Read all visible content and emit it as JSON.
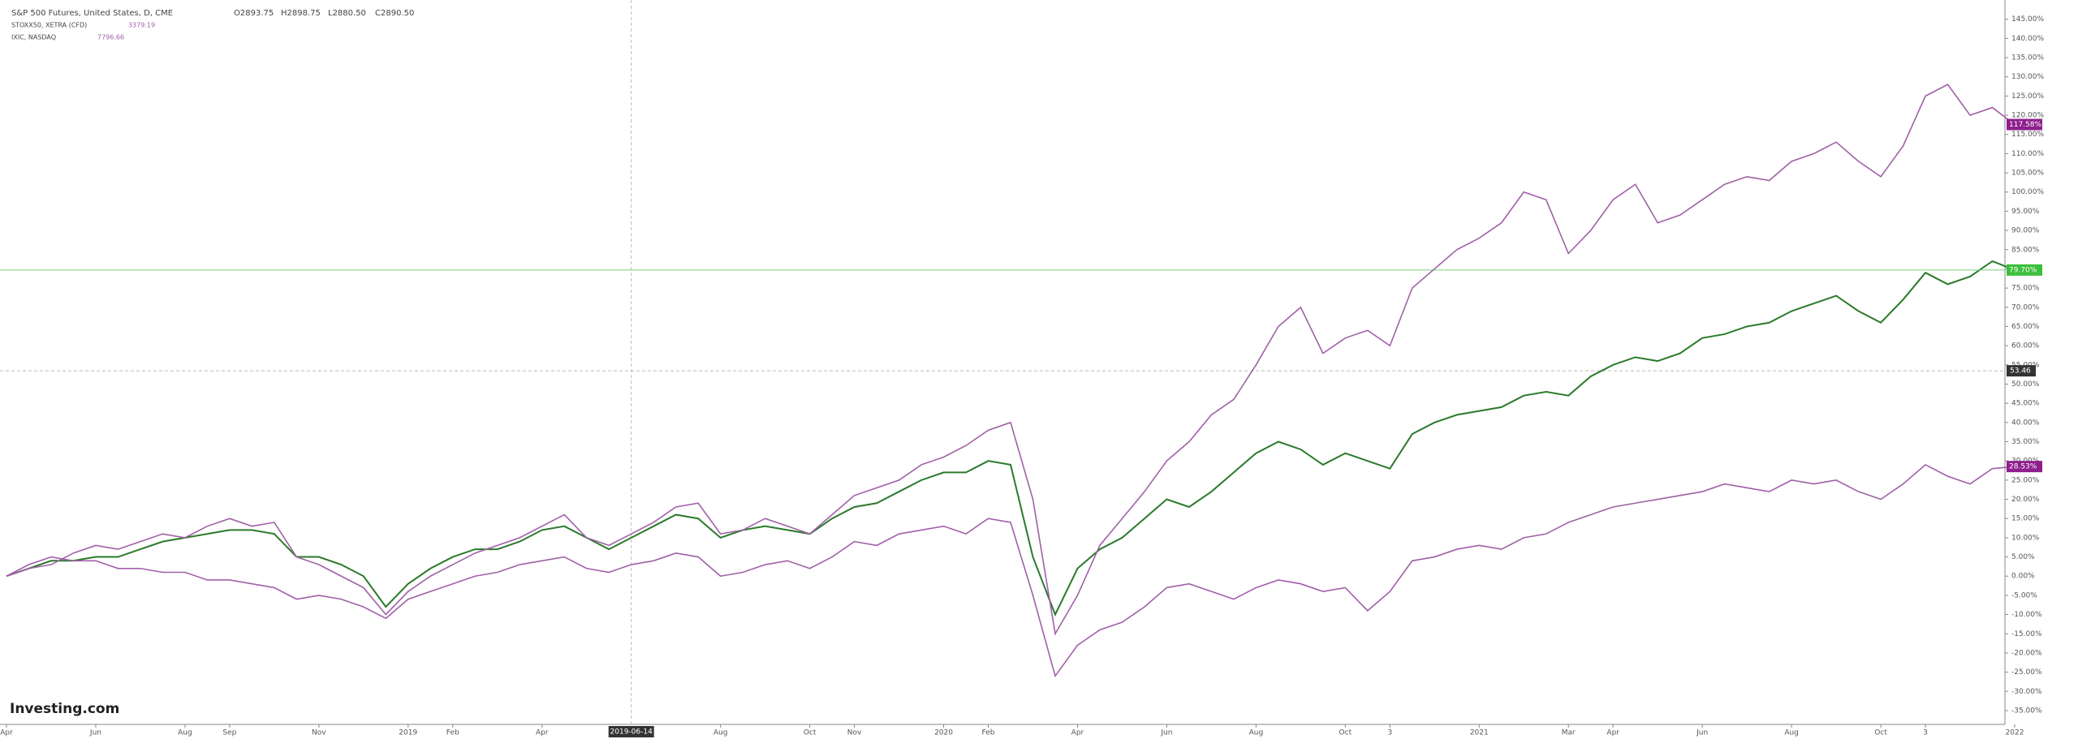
{
  "chart_data": {
    "type": "line",
    "watermark": "Investing.com",
    "categories": [
      "Apr",
      null,
      null,
      null,
      "Jun",
      null,
      null,
      null,
      "Aug",
      null,
      "Sep",
      null,
      null,
      null,
      "Nov",
      null,
      null,
      null,
      "2019",
      null,
      "Feb",
      null,
      null,
      null,
      "Apr",
      null,
      null,
      null,
      "2019-06-14",
      null,
      null,
      null,
      "Aug",
      null,
      null,
      null,
      "Oct",
      null,
      "Nov",
      null,
      null,
      null,
      "2020",
      null,
      "Feb",
      null,
      null,
      null,
      "Apr",
      null,
      null,
      null,
      "Jun",
      null,
      null,
      null,
      "Aug",
      null,
      null,
      null,
      "Oct",
      null,
      "3",
      null,
      null,
      null,
      "2021",
      null,
      null,
      null,
      "Mar",
      null,
      "Apr",
      null,
      null,
      null,
      "Jun",
      null,
      null,
      null,
      "Aug",
      null,
      null,
      null,
      "Oct",
      null,
      "3",
      null,
      null,
      null,
      "2022"
    ],
    "series": [
      {
        "name": "S&P 500 Futures, United States, D, CME",
        "color": "#2a7a2a",
        "ohlc": [
          "O2893.75",
          "H2898.75",
          "L2880.50",
          "C2890.50"
        ],
        "values": [
          0,
          2,
          4,
          4,
          5,
          5,
          7,
          9,
          10,
          11,
          12,
          12,
          11,
          5,
          5,
          3,
          0,
          -8,
          -2,
          2,
          5,
          7,
          7,
          9,
          12,
          13,
          10,
          7,
          10,
          13,
          16,
          15,
          10,
          12,
          13,
          12,
          11,
          15,
          18,
          19,
          22,
          25,
          27,
          27,
          30,
          29,
          5,
          -10,
          2,
          7,
          10,
          15,
          20,
          18,
          22,
          27,
          32,
          35,
          33,
          29,
          32,
          30,
          28,
          37,
          40,
          42,
          43,
          44,
          47,
          48,
          47,
          52,
          55,
          57,
          56,
          58,
          62,
          63,
          65,
          66,
          69,
          71,
          73,
          69,
          66,
          72,
          79,
          76,
          78,
          82,
          79.7
        ],
        "value_labels": [
          null,
          null,
          null,
          null,
          null,
          null,
          null,
          null,
          null,
          null,
          null,
          null,
          null,
          null,
          null,
          null,
          null,
          null,
          null,
          null,
          null,
          null,
          null,
          null,
          null,
          null,
          null,
          null,
          null,
          null,
          null,
          null,
          null,
          null,
          null,
          null,
          null,
          null,
          null,
          null,
          null,
          null,
          null,
          null,
          null,
          null,
          null,
          null,
          null,
          null,
          null,
          null,
          null,
          null,
          null,
          null,
          null,
          null,
          null,
          null,
          null,
          null,
          null,
          null,
          null,
          null,
          null,
          null,
          null,
          null,
          null,
          null,
          null,
          null,
          null,
          null,
          null,
          null,
          null,
          null,
          null,
          null,
          null,
          null,
          null,
          null,
          null,
          null,
          null,
          null,
          "79.70%"
        ]
      },
      {
        "name": "STOXX50, XETRA (CFD)",
        "color": "#a060a8",
        "last": "3379.19",
        "values": [
          0,
          3,
          5,
          4,
          4,
          2,
          2,
          1,
          1,
          -1,
          -1,
          -2,
          -3,
          -6,
          -5,
          -6,
          -8,
          -11,
          -6,
          -4,
          -2,
          0,
          1,
          3,
          4,
          5,
          2,
          1,
          3,
          4,
          6,
          5,
          0,
          1,
          3,
          4,
          2,
          5,
          9,
          8,
          11,
          12,
          13,
          11,
          15,
          14,
          -5,
          -26,
          -18,
          -14,
          -12,
          -8,
          -3,
          -2,
          -4,
          -6,
          -3,
          -1,
          -2,
          -4,
          -3,
          -9,
          -4,
          4,
          5,
          7,
          8,
          7,
          10,
          11,
          14,
          16,
          18,
          19,
          20,
          21,
          22,
          24,
          23,
          22,
          25,
          24,
          25,
          22,
          20,
          24,
          29,
          26,
          24,
          28,
          28.53
        ],
        "value_labels": [
          null,
          null,
          null,
          null,
          null,
          null,
          null,
          null,
          null,
          null,
          null,
          null,
          null,
          null,
          null,
          null,
          null,
          null,
          null,
          null,
          null,
          null,
          null,
          null,
          null,
          null,
          null,
          null,
          null,
          null,
          null,
          null,
          null,
          null,
          null,
          null,
          null,
          null,
          null,
          null,
          null,
          null,
          null,
          null,
          null,
          null,
          null,
          null,
          null,
          null,
          null,
          null,
          null,
          null,
          null,
          null,
          null,
          null,
          null,
          null,
          null,
          null,
          null,
          null,
          null,
          null,
          null,
          null,
          null,
          null,
          null,
          null,
          null,
          null,
          null,
          null,
          null,
          null,
          null,
          null,
          null,
          null,
          null,
          null,
          null,
          null,
          null,
          null,
          null,
          null,
          "28.53%"
        ]
      },
      {
        "name": "IXIC, NASDAQ",
        "color": "#a060a8",
        "last": "7796.66",
        "values": [
          0,
          2,
          3,
          6,
          8,
          7,
          9,
          11,
          10,
          13,
          15,
          13,
          14,
          5,
          3,
          0,
          -3,
          -10,
          -4,
          0,
          3,
          6,
          8,
          10,
          13,
          16,
          10,
          8,
          11,
          14,
          18,
          19,
          11,
          12,
          15,
          13,
          11,
          16,
          21,
          23,
          25,
          29,
          31,
          34,
          38,
          40,
          20,
          -15,
          -5,
          8,
          15,
          22,
          30,
          35,
          42,
          46,
          55,
          65,
          70,
          58,
          62,
          64,
          60,
          75,
          80,
          85,
          88,
          92,
          100,
          98,
          84,
          90,
          98,
          102,
          92,
          94,
          98,
          102,
          104,
          103,
          108,
          110,
          113,
          108,
          104,
          112,
          125,
          128,
          120,
          122,
          117.58
        ],
        "value_labels": [
          null,
          null,
          null,
          null,
          null,
          null,
          null,
          null,
          null,
          null,
          null,
          null,
          null,
          null,
          null,
          null,
          null,
          null,
          null,
          null,
          null,
          null,
          null,
          null,
          null,
          null,
          null,
          null,
          null,
          null,
          null,
          null,
          null,
          null,
          null,
          null,
          null,
          null,
          null,
          null,
          null,
          null,
          null,
          null,
          null,
          null,
          null,
          null,
          null,
          null,
          null,
          null,
          null,
          null,
          null,
          null,
          null,
          null,
          null,
          null,
          null,
          null,
          null,
          null,
          null,
          null,
          null,
          null,
          null,
          null,
          null,
          null,
          null,
          null,
          null,
          null,
          null,
          null,
          null,
          null,
          null,
          null,
          null,
          null,
          null,
          null,
          null,
          null,
          null,
          null,
          "117.58%"
        ]
      }
    ],
    "crosshair_y": 53.46,
    "ylim": [
      -38.6,
      150
    ],
    "yticks": [
      {
        "value": -35,
        "label": "-35.00%"
      },
      {
        "value": -30,
        "label": "-30.00%"
      },
      {
        "value": -25,
        "label": "-25.00%"
      },
      {
        "value": -20,
        "label": "-20.00%"
      },
      {
        "value": -15,
        "label": "-15.00%"
      },
      {
        "value": -10,
        "label": "-10.00%"
      },
      {
        "value": -5,
        "label": "-5.00%"
      },
      {
        "value": 0,
        "label": "0.00%"
      },
      {
        "value": 5,
        "label": "5.00%"
      },
      {
        "value": 10,
        "label": "10.00%"
      },
      {
        "value": 15,
        "label": "15.00%"
      },
      {
        "value": 20,
        "label": "20.00%"
      },
      {
        "value": 25,
        "label": "25.00%"
      },
      {
        "value": 30,
        "label": "30.00%"
      },
      {
        "value": 35,
        "label": "35.00%"
      },
      {
        "value": 40,
        "label": "40.00%"
      },
      {
        "value": 45,
        "label": "45.00%"
      },
      {
        "value": 50,
        "label": "50.00%"
      },
      {
        "value": 55,
        "label": "55.00%"
      },
      {
        "value": 60,
        "label": "60.00%"
      },
      {
        "value": 65,
        "label": "65.00%"
      },
      {
        "value": 70,
        "label": "70.00%"
      },
      {
        "value": 75,
        "label": "75.00%"
      },
      {
        "value": 80,
        "label": "80.00%"
      },
      {
        "value": 85,
        "label": "85.00%"
      },
      {
        "value": 90,
        "label": "90.00%"
      },
      {
        "value": 95,
        "label": "95.00%"
      },
      {
        "value": 100,
        "label": "100.00%"
      },
      {
        "value": 105,
        "label": "105.00%"
      },
      {
        "value": 110,
        "label": "110.00%"
      },
      {
        "value": 115,
        "label": "115.00%"
      },
      {
        "value": 120,
        "label": "120.00%"
      },
      {
        "value": 125,
        "label": "125.00%"
      },
      {
        "value": 130,
        "label": "130.00%"
      },
      {
        "value": 135,
        "label": "135.00%"
      },
      {
        "value": 140,
        "label": "140.00%"
      },
      {
        "value": 145,
        "label": "145.00%"
      }
    ],
    "grid": false
  }
}
